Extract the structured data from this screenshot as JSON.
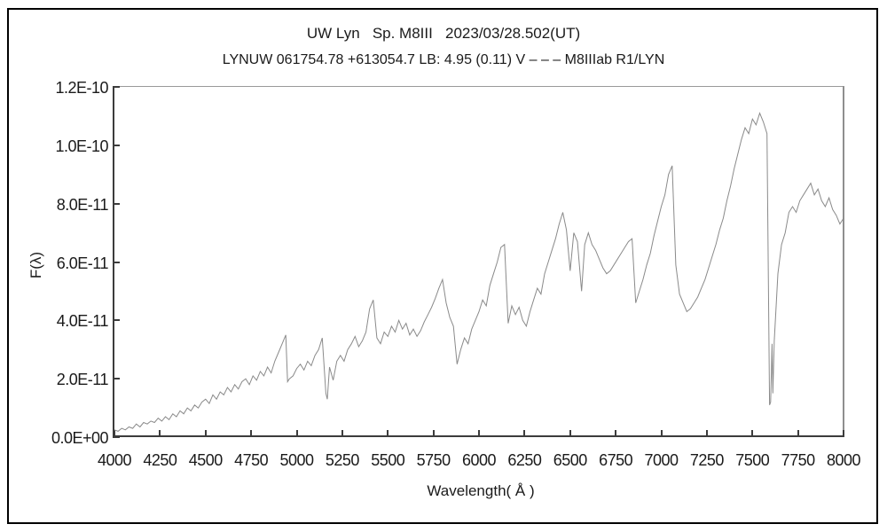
{
  "window": {
    "background": "#ffffff",
    "border_color": "#000000"
  },
  "titles": {
    "line1": "UW Lyn   Sp. M8III   2023/03/28.502(UT)",
    "line2": "LYNUW 061754.78 +613054.7 LB: 4.95 (0.11) V – – – M8IIIab R1/LYN"
  },
  "chart_data": {
    "type": "line",
    "title": "UW Lyn Sp. M8III 2023/03/28.502(UT)",
    "subtitle": "LYNUW 061754.78 +613054.7 LB: 4.95 (0.11) V – – – M8IIIab R1/LYN",
    "xlabel": "Wavelength( Å )",
    "ylabel": "F(λ)",
    "grid": false,
    "legend": null,
    "line_color": "#8a8a8a",
    "x_axis": {
      "min": 4000,
      "max": 8000,
      "ticks": [
        4000,
        4250,
        4500,
        4750,
        5000,
        5250,
        5500,
        5750,
        6000,
        6250,
        6500,
        6750,
        7000,
        7250,
        7500,
        7750,
        8000
      ]
    },
    "y_axis": {
      "min": 0,
      "max": 12,
      "unit_factor": "1e-11",
      "ticks": [
        {
          "v": 0,
          "label": "0.0E+00"
        },
        {
          "v": 2,
          "label": "2.0E-11"
        },
        {
          "v": 4,
          "label": "4.0E-11"
        },
        {
          "v": 6,
          "label": "6.0E-11"
        },
        {
          "v": 8,
          "label": "8.0E-11"
        },
        {
          "v": 10,
          "label": "1.0E-10"
        },
        {
          "v": 12,
          "label": "1.2E-10"
        }
      ]
    },
    "series": [
      {
        "name": "flux",
        "x_start": 4000,
        "x_step": 20,
        "values_unit": "1e-11",
        "values": [
          0.25,
          0.2,
          0.3,
          0.25,
          0.35,
          0.3,
          0.45,
          0.35,
          0.5,
          0.45,
          0.55,
          0.5,
          0.65,
          0.55,
          0.7,
          0.6,
          0.8,
          0.7,
          0.9,
          0.8,
          1.0,
          0.9,
          1.1,
          1.0,
          1.2,
          1.3,
          1.15,
          1.45,
          1.3,
          1.55,
          1.45,
          1.7,
          1.55,
          1.8,
          1.65,
          1.9,
          2.0,
          1.8,
          2.1,
          1.95,
          2.25,
          2.1,
          2.4,
          2.2,
          2.6,
          2.9,
          3.2,
          3.5,
          2.0,
          2.1,
          2.35,
          2.5,
          2.3,
          2.6,
          2.45,
          2.8,
          3.0,
          3.4,
          1.5,
          2.4,
          1.95,
          2.6,
          2.8,
          2.6,
          3.0,
          3.2,
          3.45,
          3.1,
          3.3,
          3.6,
          4.4,
          4.7,
          3.4,
          3.2,
          3.6,
          3.45,
          3.8,
          3.6,
          4.0,
          3.7,
          3.9,
          3.5,
          3.7,
          3.45,
          3.65,
          3.95,
          4.2,
          4.45,
          4.75,
          5.1,
          5.4,
          4.6,
          4.1,
          3.8,
          2.5,
          3.0,
          3.4,
          3.2,
          3.7,
          4.0,
          4.3,
          4.7,
          4.5,
          5.2,
          5.6,
          6.0,
          6.5,
          6.6,
          3.9,
          4.5,
          4.2,
          4.45,
          4.0,
          3.8,
          4.3,
          4.7,
          5.1,
          4.9,
          5.6,
          6.0,
          6.4,
          6.8,
          7.3,
          7.7,
          7.1,
          5.7,
          7.0,
          6.7,
          5.2,
          6.6,
          7.0,
          6.6,
          6.4,
          6.1,
          5.8,
          5.6,
          5.7,
          5.9,
          6.1,
          6.3,
          6.5,
          6.7,
          6.8,
          4.6,
          5.0,
          5.4,
          5.9,
          6.3,
          6.9,
          7.4,
          7.9,
          8.3,
          9.0,
          9.3,
          5.9,
          4.9,
          4.6,
          4.3,
          4.4,
          4.6,
          4.8,
          5.1,
          5.4,
          5.8,
          6.2,
          6.6,
          7.1,
          7.5,
          8.1,
          8.6,
          9.2,
          9.7,
          10.2,
          10.6,
          10.4,
          10.9,
          10.7,
          11.1,
          10.8,
          10.4,
          1.2,
          3.3,
          5.6,
          6.6,
          7.0,
          7.7,
          7.9,
          7.7,
          8.1,
          8.3,
          8.5,
          8.7,
          8.3,
          8.5,
          8.1,
          7.9,
          8.2,
          7.8,
          7.6,
          7.3,
          7.5
        ],
        "extra_points": [
          [
            4950,
            1.9
          ],
          [
            5168,
            1.3
          ],
          [
            6563,
            5.0
          ],
          [
            7594,
            1.1
          ],
          [
            7608,
            3.2
          ],
          [
            7612,
            1.5
          ]
        ]
      }
    ]
  }
}
